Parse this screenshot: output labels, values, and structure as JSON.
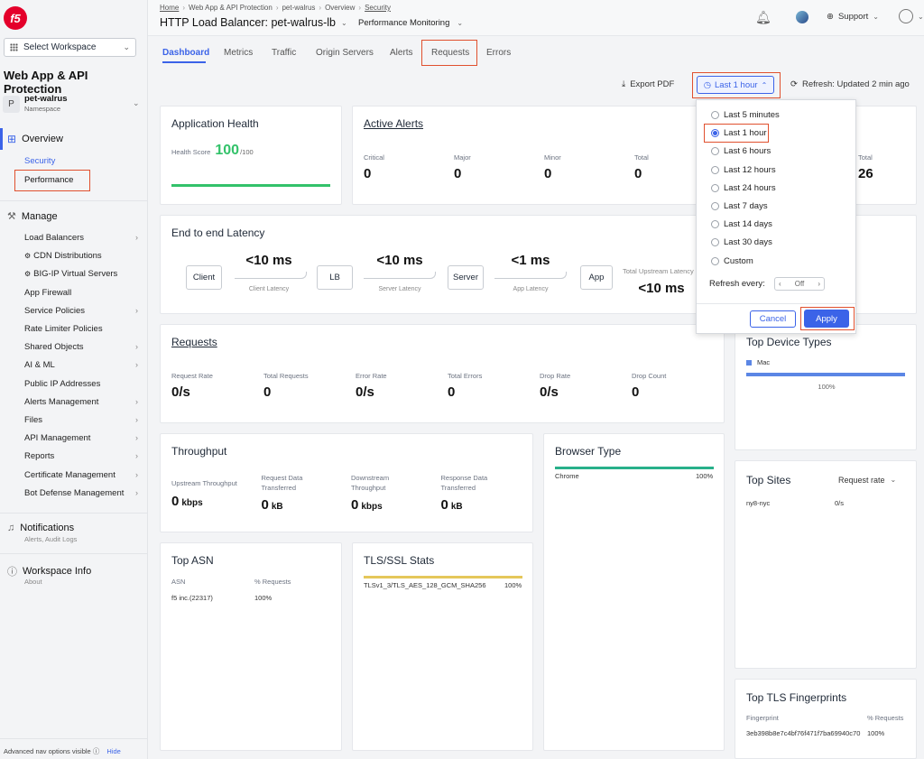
{
  "sidebar": {
    "workspace_select": "Select Workspace",
    "app_title": "Web App & API Protection",
    "namespace": {
      "avatar": "P",
      "name": "pet-walrus",
      "sub": "Namespace"
    },
    "overview": {
      "label": "Overview",
      "items": [
        "Security",
        "Performance"
      ]
    },
    "manage": {
      "label": "Manage",
      "items": [
        {
          "label": "Load Balancers",
          "arrow": true
        },
        {
          "label": "CDN Distributions",
          "arrow": false,
          "icon": true
        },
        {
          "label": "BIG-IP Virtual Servers",
          "arrow": false,
          "icon": true
        },
        {
          "label": "App Firewall",
          "arrow": false
        },
        {
          "label": "Service Policies",
          "arrow": true
        },
        {
          "label": "Rate Limiter Policies",
          "arrow": false
        },
        {
          "label": "Shared Objects",
          "arrow": true
        },
        {
          "label": "AI & ML",
          "arrow": true
        },
        {
          "label": "Public IP Addresses",
          "arrow": false
        },
        {
          "label": "Alerts Management",
          "arrow": true
        },
        {
          "label": "Files",
          "arrow": true
        },
        {
          "label": "API Management",
          "arrow": true
        },
        {
          "label": "Reports",
          "arrow": true
        },
        {
          "label": "Certificate Management",
          "arrow": true
        },
        {
          "label": "Bot Defense Management",
          "arrow": true
        }
      ]
    },
    "notifications": {
      "label": "Notifications",
      "sub": "Alerts, Audit Logs"
    },
    "workspace_info": {
      "label": "Workspace Info",
      "sub": "About"
    },
    "footer": {
      "text": "Advanced nav options visible",
      "hide": "Hide"
    }
  },
  "header": {
    "breadcrumb": [
      "Home",
      "Web App & API Protection",
      "pet-walrus",
      "Overview",
      "Security"
    ],
    "title": "HTTP Load Balancer: pet-walrus-lb",
    "view": "Performance Monitoring",
    "support": "Support"
  },
  "tabs": [
    "Dashboard",
    "Metrics",
    "Traffic",
    "Origin Servers",
    "Alerts",
    "Requests",
    "Errors"
  ],
  "toolbar": {
    "export": "Export PDF",
    "time": "Last 1 hour",
    "refresh": "Refresh: Updated 2 min ago"
  },
  "time_dropdown": {
    "options": [
      "Last 5 minutes",
      "Last 1 hour",
      "Last 6 hours",
      "Last 12 hours",
      "Last 24 hours",
      "Last 7 days",
      "Last 14 days",
      "Last 30 days",
      "Custom"
    ],
    "selected": 1,
    "refresh_label": "Refresh every:",
    "refresh_value": "Off",
    "cancel": "Cancel",
    "apply": "Apply"
  },
  "app_health": {
    "title": "Application Health",
    "label": "Health Score",
    "score": "100",
    "max": "/100",
    "fraction": 1.0
  },
  "active_alerts": {
    "title": "Active Alerts",
    "cols": [
      {
        "label": "Critical",
        "value": "0"
      },
      {
        "label": "Major",
        "value": "0"
      },
      {
        "label": "Minor",
        "value": "0"
      },
      {
        "label": "Total",
        "value": "0"
      }
    ]
  },
  "right_total": {
    "label": "Total",
    "value": "26"
  },
  "latency": {
    "title": "End to end Latency",
    "nodes": [
      "Client",
      "LB",
      "Server",
      "App"
    ],
    "values": [
      "<10 ms",
      "<10 ms",
      "<1 ms"
    ],
    "subs": [
      "Client Latency",
      "Server Latency",
      "App Latency"
    ],
    "upstream_label": "Total Upstream Latency",
    "upstream_value": "<10 ms"
  },
  "requests": {
    "title": "Requests",
    "cols": [
      {
        "label": "Request Rate",
        "value": "0/s"
      },
      {
        "label": "Total Requests",
        "value": "0"
      },
      {
        "label": "Error Rate",
        "value": "0/s"
      },
      {
        "label": "Total Errors",
        "value": "0"
      },
      {
        "label": "Drop Rate",
        "value": "0/s"
      },
      {
        "label": "Drop Count",
        "value": "0"
      }
    ]
  },
  "device_types": {
    "title": "Top Device Types",
    "legend": "Mac",
    "pct": "100%",
    "fraction": 1.0
  },
  "throughput": {
    "title": "Throughput",
    "cols": [
      {
        "label": "Upstream Throughput",
        "value": "0",
        "unit": "kbps"
      },
      {
        "label": "Request Data Transferred",
        "value": "0",
        "unit": "kB"
      },
      {
        "label": "Downstream Throughput",
        "value": "0",
        "unit": "kbps"
      },
      {
        "label": "Response Data Transferred",
        "value": "0",
        "unit": "kB"
      }
    ]
  },
  "browser": {
    "title": "Browser Type",
    "name": "Chrome",
    "pct": "100%",
    "fraction": 1.0
  },
  "top_sites": {
    "title": "Top Sites",
    "metric": "Request rate",
    "site": "ny8-nyc",
    "value": "0/s"
  },
  "top_asn": {
    "title": "Top ASN",
    "col1": "ASN",
    "col2": "% Requests",
    "asn": "f5 inc.(22317)",
    "pct": "100%"
  },
  "tls": {
    "title": "TLS/SSL Stats",
    "name": "TLSv1_3/TLS_AES_128_GCM_SHA256",
    "pct": "100%",
    "fraction": 1.0
  },
  "tls_fp": {
    "title": "Top TLS Fingerprints",
    "col1": "Fingerprint",
    "col2": "% Requests",
    "fp": "3eb398b8e7c4bf76f471f7ba69940c70",
    "pct": "100%"
  },
  "colors": {
    "accent": "#3b63e8",
    "health": "#33c26a",
    "highlight": "#e0502e",
    "browser_bar": "#28b08a",
    "tls_bar": "#e5c75a"
  }
}
